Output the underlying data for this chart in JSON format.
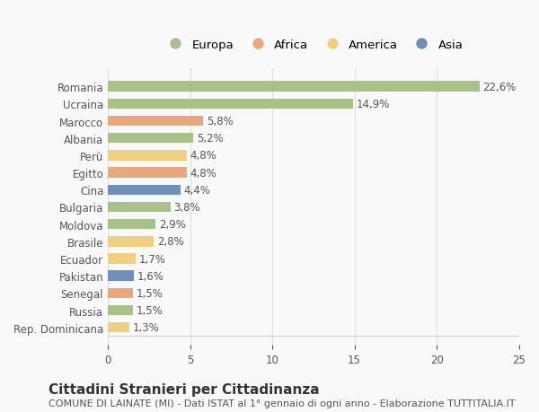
{
  "countries": [
    "Romania",
    "Ucraina",
    "Marocco",
    "Albania",
    "Perù",
    "Egitto",
    "Cina",
    "Bulgaria",
    "Moldova",
    "Brasile",
    "Ecuador",
    "Pakistan",
    "Senegal",
    "Russia",
    "Rep. Dominicana"
  ],
  "values": [
    22.6,
    14.9,
    5.8,
    5.2,
    4.8,
    4.8,
    4.4,
    3.8,
    2.9,
    2.8,
    1.7,
    1.6,
    1.5,
    1.5,
    1.3
  ],
  "labels": [
    "22,6%",
    "14,9%",
    "5,8%",
    "5,2%",
    "4,8%",
    "4,8%",
    "4,4%",
    "3,8%",
    "2,9%",
    "2,8%",
    "1,7%",
    "1,6%",
    "1,5%",
    "1,5%",
    "1,3%"
  ],
  "continents": [
    "Europa",
    "Europa",
    "Africa",
    "Europa",
    "America",
    "Africa",
    "Asia",
    "Europa",
    "Europa",
    "America",
    "America",
    "Asia",
    "Africa",
    "Europa",
    "America"
  ],
  "colors": {
    "Europa": "#a8c08a",
    "Africa": "#e8a87c",
    "America": "#f0d080",
    "Asia": "#7090b8"
  },
  "legend_order": [
    "Europa",
    "Africa",
    "America",
    "Asia"
  ],
  "title": "Cittadini Stranieri per Cittadinanza",
  "subtitle": "COMUNE DI LAINATE (MI) - Dati ISTAT al 1° gennaio di ogni anno - Elaborazione TUTTITALIA.IT",
  "xlim": [
    0,
    25
  ],
  "xticks": [
    0,
    5,
    10,
    15,
    20,
    25
  ],
  "background_color": "#f9f9f9",
  "grid_color": "#dddddd",
  "bar_height": 0.6,
  "label_fontsize": 8.5,
  "tick_fontsize": 8.5,
  "title_fontsize": 11,
  "subtitle_fontsize": 8
}
